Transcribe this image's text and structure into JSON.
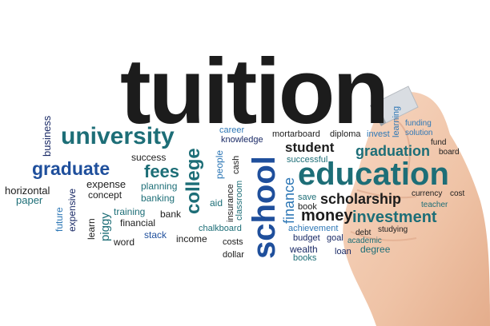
{
  "title": "tuition",
  "colors": {
    "dark": "#1c1c1c",
    "teal": "#1d6e77",
    "blue": "#1f4f9c",
    "navy": "#1a2a66",
    "sky": "#2f78b6",
    "background": "#ffffff"
  },
  "words": {
    "university": "university",
    "graduate": "graduate",
    "fees": "fees",
    "college": "college",
    "school": "school",
    "finance": "finance",
    "student": "student",
    "graduation": "graduation",
    "education": "education",
    "scholarship": "scholarship",
    "money": "money",
    "investment": "investment",
    "business": "business",
    "horizontal": "horizontal",
    "paper": "paper",
    "future": "future",
    "expensive": "expensive",
    "learn": "learn",
    "piggy": "piggy",
    "expense": "expense",
    "concept": "concept",
    "training": "training",
    "financial": "financial",
    "word": "word",
    "success": "success",
    "planning": "planning",
    "banking": "banking",
    "bank": "bank",
    "stack": "stack",
    "income": "income",
    "aid": "aid",
    "people": "people",
    "career": "career",
    "knowledge": "knowledge",
    "insurance": "insurance",
    "cash": "cash",
    "classroom": "classroom",
    "chalkboard": "chalkboard",
    "costs": "costs",
    "dollar": "dollar",
    "mortarboard": "mortarboard",
    "diploma": "diploma",
    "invest": "invest",
    "learning": "learning",
    "funding": "funding",
    "solution": "solution",
    "fund": "fund",
    "board": "board",
    "successful": "successful",
    "save": "save",
    "book": "book",
    "achievement": "achievement",
    "budget": "budget",
    "goal": "goal",
    "wealth": "wealth",
    "books": "books",
    "currency": "currency",
    "cost": "cost",
    "teacher": "teacher",
    "debt": "debt",
    "studying": "studying",
    "academic": "academic",
    "loan": "loan",
    "degree": "degree"
  }
}
